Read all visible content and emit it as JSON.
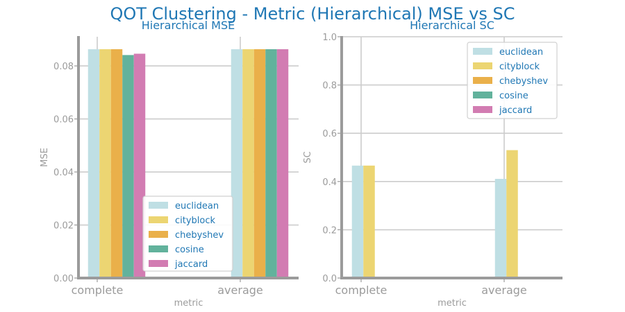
{
  "figure": {
    "title": "QOT Clustering - Metric (Hierarchical) MSE vs SC"
  },
  "colors": {
    "euclidean": "#bfdfe4",
    "cityblock": "#ecd572",
    "chebyshev": "#eab04a",
    "cosine": "#62b29c",
    "jaccard": "#d27cb2",
    "axis": "#9b9b9b",
    "grid": "#cccccc",
    "title": "#1f77b4"
  },
  "chart_data": [
    {
      "type": "bar",
      "title": "Hierarchical MSE",
      "xlabel": "metric",
      "ylabel": "MSE",
      "categories": [
        "complete",
        "average"
      ],
      "ylim": [
        0,
        0.091
      ],
      "yticks": [
        "0.00",
        "0.02",
        "0.04",
        "0.06",
        "0.08"
      ],
      "ytick_values": [
        0,
        0.02,
        0.04,
        0.06,
        0.08
      ],
      "grid": true,
      "legend_position": "lower-center",
      "series": [
        {
          "name": "euclidean",
          "values": [
            0.0863,
            0.0863
          ]
        },
        {
          "name": "cityblock",
          "values": [
            0.0863,
            0.0863
          ]
        },
        {
          "name": "chebyshev",
          "values": [
            0.0863,
            0.0863
          ]
        },
        {
          "name": "cosine",
          "values": [
            0.0841,
            0.0863
          ]
        },
        {
          "name": "jaccard",
          "values": [
            0.0846,
            0.0863
          ]
        }
      ]
    },
    {
      "type": "bar",
      "title": "Hierarchical SC",
      "xlabel": "metric",
      "ylabel": "SC",
      "categories": [
        "complete",
        "average"
      ],
      "ylim": [
        0,
        1.0
      ],
      "yticks": [
        "0.0",
        "0.2",
        "0.4",
        "0.6",
        "0.8",
        "1.0"
      ],
      "ytick_values": [
        0,
        0.2,
        0.4,
        0.6,
        0.8,
        1.0
      ],
      "grid": true,
      "legend_position": "top-right",
      "series": [
        {
          "name": "euclidean",
          "values": [
            0.466,
            0.411
          ]
        },
        {
          "name": "cityblock",
          "values": [
            0.466,
            0.53
          ]
        },
        {
          "name": "chebyshev",
          "values": [
            0,
            0
          ]
        },
        {
          "name": "cosine",
          "values": [
            0,
            0
          ]
        },
        {
          "name": "jaccard",
          "values": [
            0,
            0
          ]
        }
      ]
    }
  ]
}
